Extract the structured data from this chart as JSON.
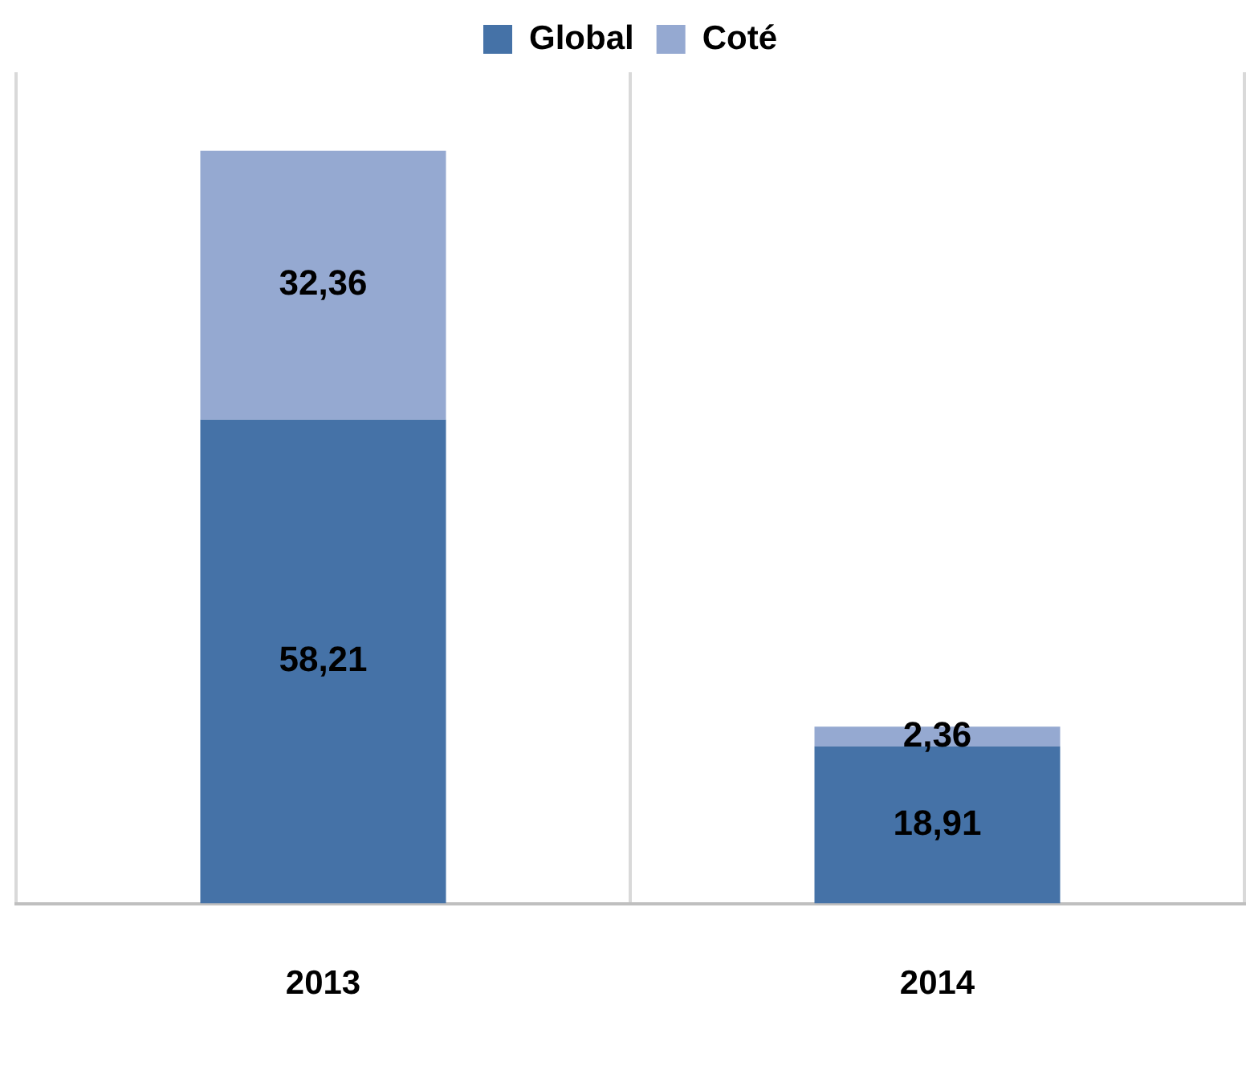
{
  "chart_data": {
    "type": "bar",
    "stacked": true,
    "categories": [
      "2013",
      "2014"
    ],
    "series": [
      {
        "name": "Global",
        "color": "#4572a7",
        "values": [
          58.21,
          18.91
        ],
        "value_labels": [
          "58,21",
          "18,91"
        ]
      },
      {
        "name": "Coté",
        "color": "#95a9d1",
        "values": [
          32.36,
          2.36
        ],
        "value_labels": [
          "32,36",
          "2,36"
        ]
      }
    ],
    "legend": "top",
    "grid": "x",
    "tick_labels": "x"
  }
}
